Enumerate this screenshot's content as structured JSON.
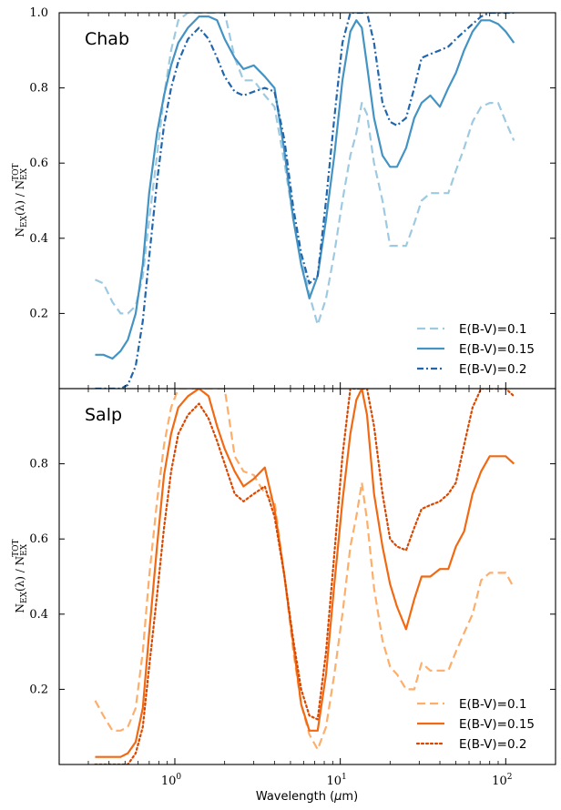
{
  "chart_data": [
    {
      "type": "line",
      "title": "Chab",
      "ylabel": "N_EX(λ) / N_EX^TOT",
      "xscale": "log",
      "xlim": [
        0.2,
        200
      ],
      "ylim": [
        0.0,
        1.0
      ],
      "x_ticks": [
        1,
        10,
        100
      ],
      "x_tick_labels": [
        "10^0",
        "10^1",
        "10^2"
      ],
      "y_ticks": [
        0.2,
        0.4,
        0.6,
        0.8,
        1.0
      ],
      "y_tick_labels": [
        "0.2",
        "0.4",
        "0.6",
        "0.8",
        "1.0"
      ],
      "legend_loc": "lower right",
      "series": [
        {
          "name": "E(B-V)=0.1",
          "style": "dashed",
          "color": "#9ecae1",
          "x": [
            0.33,
            0.37,
            0.42,
            0.47,
            0.52,
            0.58,
            0.64,
            0.7,
            0.78,
            0.86,
            0.95,
            1.05,
            1.2,
            1.4,
            1.6,
            1.8,
            2.0,
            2.3,
            2.6,
            3.0,
            3.5,
            4.0,
            4.6,
            5.2,
            5.8,
            6.5,
            7.3,
            8.2,
            9.2,
            10.3,
            11.5,
            12.5,
            13.5,
            14.5,
            16,
            18,
            20,
            22,
            25,
            28,
            31,
            35,
            40,
            45,
            50,
            56,
            63,
            71,
            80,
            90,
            100,
            112
          ],
          "y": [
            0.29,
            0.28,
            0.23,
            0.2,
            0.2,
            0.22,
            0.3,
            0.45,
            0.62,
            0.78,
            0.9,
            0.98,
            1.0,
            1.0,
            1.0,
            1.0,
            1.0,
            0.88,
            0.82,
            0.82,
            0.78,
            0.75,
            0.6,
            0.45,
            0.35,
            0.25,
            0.17,
            0.24,
            0.36,
            0.5,
            0.62,
            0.68,
            0.76,
            0.73,
            0.6,
            0.5,
            0.38,
            0.38,
            0.38,
            0.44,
            0.5,
            0.52,
            0.52,
            0.52,
            0.58,
            0.64,
            0.71,
            0.75,
            0.76,
            0.76,
            0.71,
            0.66
          ]
        },
        {
          "name": "E(B-V)=0.15",
          "style": "solid",
          "color": "#4393c3",
          "x": [
            0.33,
            0.37,
            0.42,
            0.47,
            0.52,
            0.58,
            0.64,
            0.7,
            0.78,
            0.86,
            0.95,
            1.05,
            1.2,
            1.4,
            1.6,
            1.8,
            2.0,
            2.3,
            2.6,
            3.0,
            3.5,
            4.0,
            4.6,
            5.2,
            5.8,
            6.5,
            7.3,
            8.2,
            9.2,
            10.3,
            11.5,
            12.5,
            13.5,
            14.5,
            16,
            18,
            20,
            22,
            25,
            28,
            31,
            35,
            40,
            45,
            50,
            56,
            63,
            71,
            80,
            90,
            100,
            112
          ],
          "y": [
            0.09,
            0.09,
            0.08,
            0.1,
            0.13,
            0.2,
            0.33,
            0.52,
            0.68,
            0.78,
            0.86,
            0.92,
            0.96,
            0.99,
            0.99,
            0.98,
            0.93,
            0.88,
            0.85,
            0.86,
            0.83,
            0.8,
            0.63,
            0.45,
            0.33,
            0.24,
            0.3,
            0.45,
            0.62,
            0.82,
            0.95,
            0.98,
            0.96,
            0.86,
            0.72,
            0.62,
            0.59,
            0.59,
            0.64,
            0.72,
            0.76,
            0.78,
            0.75,
            0.8,
            0.84,
            0.9,
            0.95,
            0.98,
            0.98,
            0.97,
            0.95,
            0.92
          ]
        },
        {
          "name": "E(B-V)=0.2",
          "style": "dashdot",
          "color": "#2166ac",
          "x": [
            0.33,
            0.37,
            0.42,
            0.47,
            0.52,
            0.58,
            0.64,
            0.7,
            0.78,
            0.86,
            0.95,
            1.05,
            1.2,
            1.4,
            1.6,
            1.8,
            2.0,
            2.3,
            2.6,
            3.0,
            3.5,
            4.0,
            4.6,
            5.2,
            5.8,
            6.5,
            7.3,
            8.2,
            9.2,
            10.3,
            11.5,
            12.5,
            13.5,
            14.5,
            16,
            18,
            20,
            22,
            25,
            28,
            31,
            35,
            40,
            45,
            50,
            56,
            63,
            71,
            80,
            90,
            100,
            112
          ],
          "y": [
            0.0,
            0.0,
            0.0,
            0.0,
            0.01,
            0.06,
            0.18,
            0.35,
            0.55,
            0.7,
            0.8,
            0.87,
            0.93,
            0.96,
            0.93,
            0.88,
            0.83,
            0.79,
            0.78,
            0.79,
            0.8,
            0.79,
            0.66,
            0.48,
            0.36,
            0.28,
            0.3,
            0.5,
            0.72,
            0.92,
            1.0,
            1.0,
            1.0,
            1.0,
            0.92,
            0.76,
            0.71,
            0.7,
            0.72,
            0.8,
            0.88,
            0.89,
            0.9,
            0.91,
            0.93,
            0.95,
            0.97,
            0.99,
            1.0,
            1.0,
            1.0,
            1.0
          ]
        }
      ]
    },
    {
      "type": "line",
      "title": "Salp",
      "ylabel": "N_EX(λ) / N_EX^TOT",
      "xlabel": "Wavelength (μm)",
      "xscale": "log",
      "xlim": [
        0.2,
        200
      ],
      "ylim": [
        0.0,
        1.0
      ],
      "x_ticks": [
        1,
        10,
        100
      ],
      "x_tick_labels": [
        "10^0",
        "10^1",
        "10^2"
      ],
      "y_ticks": [
        0.2,
        0.4,
        0.6,
        0.8
      ],
      "y_tick_labels": [
        "0.2",
        "0.4",
        "0.6",
        "0.8"
      ],
      "legend_loc": "lower right",
      "series": [
        {
          "name": "E(B-V)=0.1",
          "style": "dashed",
          "color": "#fdae6b",
          "x": [
            0.33,
            0.37,
            0.42,
            0.47,
            0.52,
            0.58,
            0.64,
            0.7,
            0.78,
            0.86,
            0.95,
            1.05,
            1.2,
            1.4,
            1.6,
            1.8,
            2.0,
            2.3,
            2.6,
            3.0,
            3.5,
            4.0,
            4.6,
            5.2,
            5.8,
            6.5,
            7.3,
            8.2,
            9.2,
            10.3,
            11.5,
            12.5,
            13.5,
            14.5,
            16,
            18,
            20,
            22,
            25,
            28,
            31,
            35,
            40,
            45,
            50,
            56,
            63,
            71,
            80,
            90,
            100,
            112
          ],
          "y": [
            0.17,
            0.13,
            0.09,
            0.09,
            0.1,
            0.15,
            0.3,
            0.5,
            0.7,
            0.85,
            0.95,
            1.0,
            1.0,
            1.0,
            1.0,
            1.0,
            1.0,
            0.82,
            0.78,
            0.77,
            0.72,
            0.7,
            0.5,
            0.3,
            0.16,
            0.08,
            0.04,
            0.1,
            0.24,
            0.4,
            0.58,
            0.66,
            0.75,
            0.65,
            0.47,
            0.33,
            0.26,
            0.24,
            0.2,
            0.2,
            0.27,
            0.25,
            0.25,
            0.25,
            0.3,
            0.35,
            0.4,
            0.49,
            0.51,
            0.51,
            0.51,
            0.47
          ]
        },
        {
          "name": "E(B-V)=0.15",
          "style": "solid",
          "color": "#f16913",
          "x": [
            0.33,
            0.37,
            0.42,
            0.47,
            0.52,
            0.58,
            0.64,
            0.7,
            0.78,
            0.86,
            0.95,
            1.05,
            1.2,
            1.4,
            1.6,
            1.8,
            2.0,
            2.3,
            2.6,
            3.0,
            3.5,
            4.0,
            4.6,
            5.2,
            5.8,
            6.5,
            7.3,
            8.2,
            9.2,
            10.3,
            11.5,
            12.5,
            13.5,
            14.5,
            16,
            18,
            20,
            22,
            25,
            28,
            31,
            35,
            40,
            45,
            50,
            56,
            63,
            71,
            80,
            90,
            100,
            112
          ],
          "y": [
            0.02,
            0.02,
            0.02,
            0.02,
            0.03,
            0.06,
            0.15,
            0.35,
            0.58,
            0.77,
            0.88,
            0.95,
            0.98,
            1.0,
            0.98,
            0.9,
            0.84,
            0.78,
            0.74,
            0.76,
            0.79,
            0.68,
            0.5,
            0.32,
            0.16,
            0.09,
            0.09,
            0.24,
            0.48,
            0.7,
            0.88,
            0.97,
            1.0,
            0.93,
            0.72,
            0.58,
            0.48,
            0.42,
            0.36,
            0.44,
            0.5,
            0.5,
            0.52,
            0.52,
            0.58,
            0.62,
            0.72,
            0.78,
            0.82,
            0.82,
            0.82,
            0.8
          ]
        },
        {
          "name": "E(B-V)=0.2",
          "style": "dotted",
          "color": "#d94801",
          "x": [
            0.33,
            0.37,
            0.42,
            0.47,
            0.52,
            0.58,
            0.64,
            0.7,
            0.78,
            0.86,
            0.95,
            1.05,
            1.2,
            1.4,
            1.6,
            1.8,
            2.0,
            2.3,
            2.6,
            3.0,
            3.5,
            4.0,
            4.6,
            5.2,
            5.8,
            6.5,
            7.3,
            8.2,
            9.2,
            10.3,
            11.5,
            12.5,
            13.5,
            14.5,
            16,
            18,
            20,
            22,
            25,
            28,
            31,
            35,
            40,
            45,
            50,
            56,
            63,
            71,
            80,
            90,
            100,
            112
          ],
          "y": [
            0.0,
            0.0,
            0.0,
            0.0,
            0.0,
            0.03,
            0.1,
            0.26,
            0.45,
            0.63,
            0.78,
            0.88,
            0.93,
            0.96,
            0.92,
            0.86,
            0.8,
            0.72,
            0.7,
            0.72,
            0.74,
            0.66,
            0.5,
            0.33,
            0.2,
            0.13,
            0.12,
            0.3,
            0.56,
            0.82,
            1.0,
            1.0,
            1.0,
            1.0,
            0.9,
            0.72,
            0.6,
            0.58,
            0.57,
            0.63,
            0.68,
            0.69,
            0.7,
            0.72,
            0.75,
            0.85,
            0.95,
            1.0,
            1.0,
            1.0,
            1.0,
            0.98
          ]
        }
      ]
    }
  ]
}
